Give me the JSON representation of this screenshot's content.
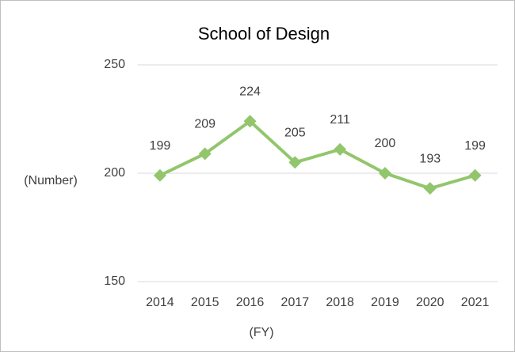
{
  "chart_data": {
    "type": "line",
    "title": "School of Design",
    "categories": [
      "2014",
      "2015",
      "2016",
      "2017",
      "2018",
      "2019",
      "2020",
      "2021"
    ],
    "series": [
      {
        "name": "School of Design",
        "color": "#92c66c",
        "values": [
          199,
          209,
          224,
          205,
          211,
          200,
          193,
          199
        ]
      }
    ],
    "ylim": [
      150,
      250
    ],
    "yticks": [
      150,
      200,
      250
    ],
    "grid": true,
    "y_label": "(Number)",
    "x_label": "(FY)",
    "data_labels": true
  }
}
